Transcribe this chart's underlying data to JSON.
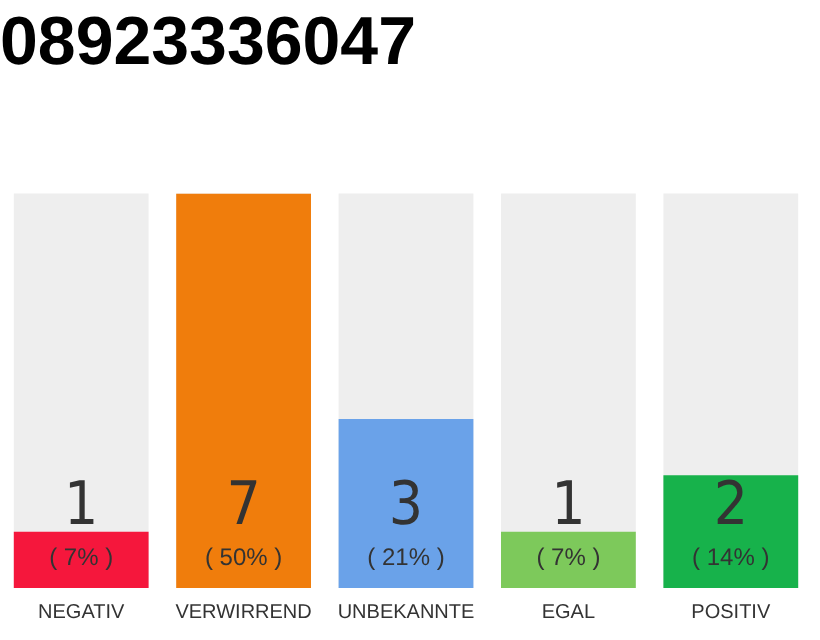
{
  "chart_data": {
    "type": "bar",
    "title": "08923336047",
    "categories": [
      "NEGATIV",
      "VERWIRREND",
      "UNBEKANNTE",
      "EGAL",
      "POSITIV"
    ],
    "values": [
      1,
      7,
      3,
      1,
      2
    ],
    "colors": [
      "#f5173c",
      "#f07d0c",
      "#6aa2e9",
      "#7dc95b",
      "#17b24b"
    ],
    "ylim": [
      0,
      7
    ],
    "tick_labels": "x",
    "grid": false,
    "legend": false,
    "data_labels": true,
    "annotations": [
      "( 7% )",
      "( 50% )",
      "( 21% )",
      "( 7% )",
      "( 14% )"
    ]
  }
}
